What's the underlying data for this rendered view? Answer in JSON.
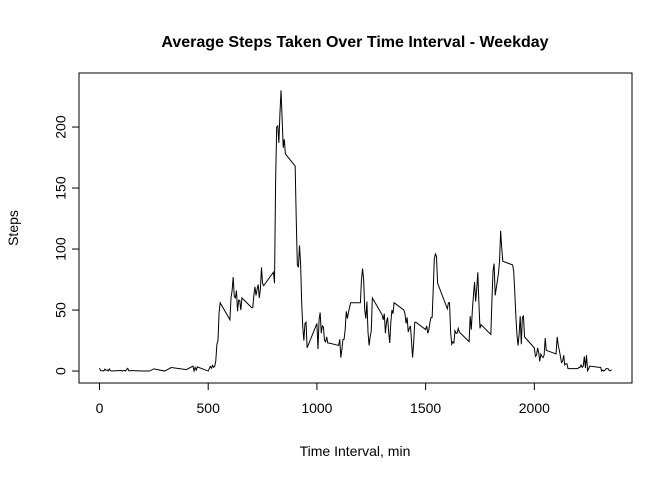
{
  "chart_data": {
    "type": "line",
    "title": "Average Steps Taken Over Time Interval - Weekday",
    "x_label": "Time Interval, min",
    "y_label": "Steps",
    "x": [
      0,
      5,
      10,
      15,
      20,
      25,
      30,
      35,
      40,
      45,
      50,
      55,
      100,
      105,
      110,
      115,
      120,
      125,
      130,
      135,
      140,
      145,
      150,
      200,
      230,
      250,
      300,
      330,
      400,
      430,
      435,
      440,
      445,
      450,
      500,
      505,
      510,
      515,
      520,
      525,
      530,
      535,
      540,
      545,
      550,
      555,
      600,
      605,
      610,
      615,
      620,
      625,
      630,
      635,
      640,
      645,
      650,
      655,
      700,
      705,
      710,
      715,
      720,
      725,
      730,
      735,
      740,
      745,
      750,
      755,
      800,
      805,
      810,
      815,
      820,
      825,
      830,
      835,
      840,
      845,
      850,
      855,
      900,
      905,
      910,
      915,
      920,
      925,
      930,
      935,
      940,
      945,
      950,
      955,
      1000,
      1005,
      1010,
      1015,
      1020,
      1025,
      1030,
      1035,
      1040,
      1045,
      1050,
      1055,
      1100,
      1105,
      1110,
      1115,
      1120,
      1125,
      1130,
      1135,
      1140,
      1145,
      1150,
      1155,
      1200,
      1205,
      1210,
      1215,
      1220,
      1225,
      1230,
      1235,
      1240,
      1245,
      1250,
      1255,
      1300,
      1305,
      1310,
      1315,
      1320,
      1325,
      1330,
      1335,
      1340,
      1345,
      1350,
      1355,
      1400,
      1405,
      1410,
      1415,
      1420,
      1425,
      1430,
      1435,
      1440,
      1445,
      1450,
      1455,
      1500,
      1505,
      1510,
      1515,
      1520,
      1525,
      1530,
      1535,
      1540,
      1545,
      1550,
      1555,
      1600,
      1605,
      1610,
      1615,
      1620,
      1625,
      1630,
      1635,
      1640,
      1645,
      1650,
      1655,
      1700,
      1705,
      1710,
      1715,
      1720,
      1725,
      1730,
      1735,
      1740,
      1745,
      1750,
      1755,
      1800,
      1805,
      1810,
      1815,
      1820,
      1825,
      1830,
      1835,
      1840,
      1845,
      1850,
      1855,
      1900,
      1905,
      1910,
      1915,
      1920,
      1925,
      1930,
      1935,
      1940,
      1945,
      1950,
      1955,
      2000,
      2005,
      2010,
      2015,
      2020,
      2025,
      2030,
      2035,
      2040,
      2045,
      2050,
      2055,
      2100,
      2105,
      2110,
      2115,
      2120,
      2125,
      2130,
      2135,
      2140,
      2145,
      2150,
      2155,
      2200,
      2205,
      2210,
      2215,
      2220,
      2225,
      2230,
      2235,
      2240,
      2245,
      2250,
      2255,
      2300,
      2305,
      2310,
      2315,
      2320,
      2325,
      2330,
      2335,
      2340,
      2345,
      2350,
      2355
    ],
    "series": [
      {
        "name": "Steps",
        "color": "#000000",
        "values": [
          2.3,
          0.5,
          0.2,
          0.2,
          0.1,
          1.6,
          0.6,
          1,
          0,
          1.8,
          0.4,
          0,
          0.4,
          0,
          0.2,
          0.5,
          0,
          1.4,
          2.2,
          0.2,
          0.2,
          0.3,
          0.3,
          0,
          0,
          1.8,
          0,
          2.9,
          1.2,
          4,
          0,
          3,
          0.8,
          3.4,
          0,
          2,
          3.8,
          2.3,
          4.6,
          3,
          3.8,
          8.4,
          22,
          25,
          48,
          56,
          42,
          60,
          66,
          77,
          61,
          60,
          66,
          49,
          58,
          58,
          50,
          60,
          52,
          52,
          62,
          69,
          62,
          67,
          71,
          60,
          67,
          85,
          72,
          70,
          81,
          72,
          155,
          200,
          201,
          187,
          211,
          230,
          207,
          183,
          190,
          178,
          168,
          124,
          87,
          85,
          103,
          88,
          56,
          36,
          25,
          39,
          40,
          19,
          39,
          18,
          42,
          48,
          31,
          37,
          36,
          25,
          24,
          28,
          23,
          23,
          21,
          26,
          11,
          18,
          26,
          26,
          34,
          49,
          43,
          48,
          52,
          56,
          56,
          75,
          84,
          75,
          50,
          43,
          57,
          32,
          21,
          28,
          33,
          60,
          46,
          42,
          47,
          31,
          40,
          44,
          32,
          23,
          40,
          50,
          47,
          56,
          50,
          47,
          39,
          44,
          32,
          35,
          37,
          25,
          11,
          23,
          40,
          40,
          34,
          37,
          31,
          34,
          40,
          44,
          44,
          67,
          92,
          96,
          94,
          72,
          51,
          56,
          56,
          32,
          22,
          24,
          23,
          33,
          31,
          31,
          35,
          32,
          24,
          45,
          34,
          50,
          62,
          73,
          57,
          67,
          81,
          56,
          35,
          38,
          30,
          58,
          82,
          88,
          62,
          68,
          74,
          80,
          90,
          115,
          101,
          90,
          87,
          82,
          65,
          45,
          30,
          21,
          30,
          45,
          22,
          44,
          45,
          28,
          19,
          12,
          13,
          19,
          15,
          8,
          14,
          12,
          11,
          13,
          27,
          17,
          14,
          28,
          21,
          17,
          12,
          7,
          8,
          13,
          5,
          6,
          6,
          2,
          2,
          3,
          3,
          5,
          3,
          4,
          12,
          2.5,
          13,
          0.3,
          2,
          4,
          3,
          3,
          0,
          0.8,
          0,
          0.8,
          2,
          2,
          1.8,
          0.3,
          0.2,
          1.1
        ]
      }
    ],
    "xlim": [
      -94.2,
      2449.2
    ],
    "ylim": [
      -9.8,
      244.3
    ],
    "xticks": [
      0,
      500,
      1000,
      1500,
      2000
    ],
    "yticks": [
      0,
      50,
      100,
      150,
      200
    ]
  }
}
